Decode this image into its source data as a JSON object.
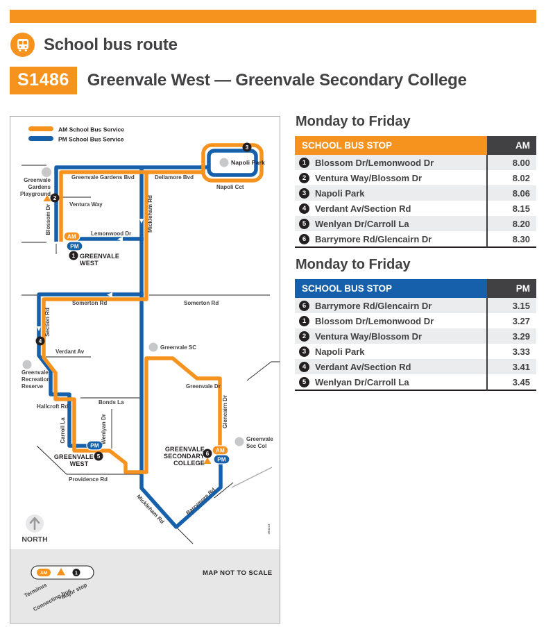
{
  "header": {
    "page_title": "School bus route",
    "route_code": "S1486",
    "route_name": "Greenvale West — Greenvale Secondary College"
  },
  "colors": {
    "orange": "#F6921E",
    "blue": "#1660AB",
    "dark": "#414042",
    "black": "#231F20",
    "row_stripe": "#EBECEE",
    "map_footer_gray": "#E7E7E8"
  },
  "map": {
    "legend_am": "AM School Bus Service",
    "legend_pm": "PM School Bus Service",
    "pill_am": "AM",
    "pill_pm": "PM",
    "stop_numbers": [
      "1",
      "2",
      "3",
      "4",
      "5",
      "6"
    ],
    "roads": {
      "gardens": "Greenvale Gardens Bvd",
      "dellamore": "Dellamore Bvd",
      "napoli_cct": "Napoli Cct",
      "ventura": "Ventura Way",
      "blossom": "Blossom Dr",
      "lemonwood": "Lemonwood Dr",
      "mickleham": "Mickleham Rd",
      "somerton": "Somerton Rd",
      "section": "Section Rd",
      "verdant": "Verdant Av",
      "hallcroft": "Hallcroft Rd",
      "bonds": "Bonds La",
      "carroll": "Carroll La",
      "wenlyan": "Wenlyan Dr",
      "providence": "Providence Rd",
      "greenvale_dr": "Greenvale Dr",
      "glencairn": "Glencairn Dr",
      "barrymore": "Barrymore Rd"
    },
    "landmarks": {
      "napoli_park": "Napoli Park",
      "playground": [
        "Greenvale",
        "Gardens",
        "Playground"
      ],
      "recreation": [
        "Greenvale",
        "Recreation",
        "Reserve"
      ],
      "greenvale_sc": "Greenvale SC",
      "sec_col": [
        "Greenvale",
        "Sec Col"
      ]
    },
    "places": {
      "west1": [
        "GREENVALE",
        "WEST"
      ],
      "west5": [
        "GREENVALE",
        "WEST"
      ],
      "college": [
        "GREENVALE",
        "SECONDARY",
        "COLLEGE"
      ]
    },
    "north": "NORTH",
    "not_to_scale": "MAP NOT TO SCALE",
    "footer_legend": {
      "terminus": "Terminus",
      "connecting": "Connecting bus",
      "major": "Major stop"
    },
    "map_id": "384223"
  },
  "timetables": [
    {
      "title": "Monday to Friday",
      "header": "SCHOOL BUS STOP",
      "period": "AM",
      "accent_hex": "#F6921E",
      "rows": [
        {
          "num": "1",
          "stop": "Blossom Dr/Lemonwood Dr",
          "time": "8.00"
        },
        {
          "num": "2",
          "stop": "Ventura Way/Blossom Dr",
          "time": "8.02"
        },
        {
          "num": "3",
          "stop": "Napoli Park",
          "time": "8.06"
        },
        {
          "num": "4",
          "stop": "Verdant Av/Section Rd",
          "time": "8.15"
        },
        {
          "num": "5",
          "stop": "Wenlyan Dr/Carroll La",
          "time": "8.20"
        },
        {
          "num": "6",
          "stop": "Barrymore Rd/Glencairn Dr",
          "time": "8.30"
        }
      ]
    },
    {
      "title": "Monday to Friday",
      "header": "SCHOOL BUS STOP",
      "period": "PM",
      "accent_hex": "#1660AB",
      "rows": [
        {
          "num": "6",
          "stop": "Barrymore Rd/Glencairn Dr",
          "time": "3.15"
        },
        {
          "num": "1",
          "stop": "Blossom Dr/Lemonwood Dr",
          "time": "3.27"
        },
        {
          "num": "2",
          "stop": "Ventura Way/Blossom Dr",
          "time": "3.29"
        },
        {
          "num": "3",
          "stop": "Napoli Park",
          "time": "3.33"
        },
        {
          "num": "4",
          "stop": "Verdant Av/Section Rd",
          "time": "3.41"
        },
        {
          "num": "5",
          "stop": "Wenlyan Dr/Carroll La",
          "time": "3.45"
        }
      ]
    }
  ]
}
